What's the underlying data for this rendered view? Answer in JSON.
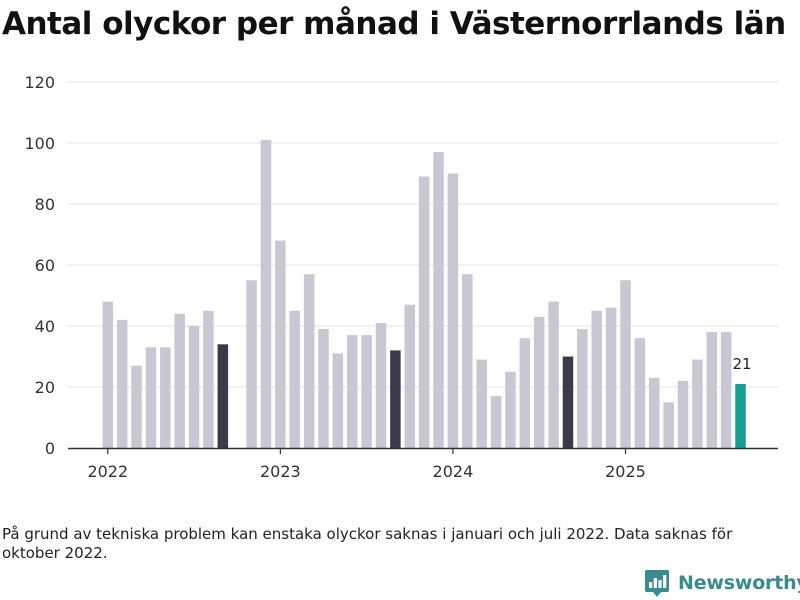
{
  "title": "Antal olyckor per månad i Västernorrlands län",
  "footnote": "På grund av tekniska problem kan enstaka olyckor saknas i januari och juli 2022. Data saknas för oktober 2022.",
  "brand": {
    "name": "Newsworthy",
    "icon": "newsworthy-logo-icon"
  },
  "colors": {
    "bar": "#c8c7d2",
    "highlight": "#3c3a49",
    "latest": "#169e94",
    "grid": "#e3e3e3",
    "axis": "#333333",
    "brand": "#3a8b8b"
  },
  "chart_data": {
    "type": "bar",
    "title": "Antal olyckor per månad i Västernorrlands län",
    "xlabel": "",
    "ylabel": "",
    "ylim": [
      0,
      120
    ],
    "yticks": [
      "0",
      "20",
      "40",
      "60",
      "80",
      "100",
      "120"
    ],
    "xticks": [
      {
        "label": "2022",
        "month_index": 0
      },
      {
        "label": "2023",
        "month_index": 12
      },
      {
        "label": "2024",
        "month_index": 24
      },
      {
        "label": "2025",
        "month_index": 36
      }
    ],
    "series": [
      {
        "name": "Antal olyckor",
        "values": [
          48,
          42,
          27,
          33,
          33,
          44,
          40,
          45,
          34,
          null,
          55,
          101,
          68,
          45,
          57,
          39,
          31,
          37,
          37,
          41,
          32,
          47,
          89,
          97,
          90,
          57,
          29,
          17,
          25,
          36,
          43,
          48,
          30,
          39,
          45,
          46,
          55,
          36,
          23,
          15,
          22,
          29,
          38,
          38,
          21
        ]
      }
    ],
    "highlight_indices": [
      8,
      20,
      32
    ],
    "latest_index": 44,
    "annotation": {
      "index": 44,
      "text": "21"
    }
  }
}
